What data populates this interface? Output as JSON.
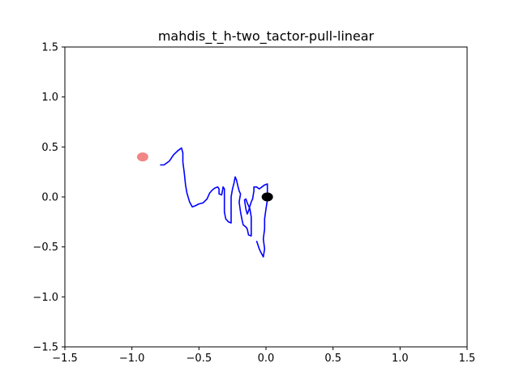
{
  "chart_data": {
    "type": "line",
    "title": "mahdis_t_h-two_tactor-pull-linear",
    "xlabel": "",
    "ylabel": "",
    "xlim": [
      -1.5,
      1.5
    ],
    "ylim": [
      -1.5,
      1.5
    ],
    "grid": false,
    "xticks": [
      {
        "value": -1.5,
        "label": "−1.5"
      },
      {
        "value": -1.0,
        "label": "−1.0"
      },
      {
        "value": -0.5,
        "label": "−0.5"
      },
      {
        "value": 0.0,
        "label": "0.0"
      },
      {
        "value": 0.5,
        "label": "0.5"
      },
      {
        "value": 1.0,
        "label": "1.0"
      },
      {
        "value": 1.5,
        "label": "1.5"
      }
    ],
    "yticks": [
      {
        "value": -1.5,
        "label": "−1.5"
      },
      {
        "value": -1.0,
        "label": "−1.0"
      },
      {
        "value": -0.5,
        "label": "−0.5"
      },
      {
        "value": 0.0,
        "label": "0.0"
      },
      {
        "value": 0.5,
        "label": "0.5"
      },
      {
        "value": 1.0,
        "label": "1.0"
      },
      {
        "value": 1.5,
        "label": "1.5"
      }
    ],
    "series": [
      {
        "color": "#0000ff",
        "points": [
          [
            -0.79,
            0.32
          ],
          [
            -0.76,
            0.32
          ],
          [
            -0.72,
            0.36
          ],
          [
            -0.69,
            0.42
          ],
          [
            -0.66,
            0.46
          ],
          [
            -0.64,
            0.48
          ],
          [
            -0.63,
            0.49
          ],
          [
            -0.62,
            0.44
          ],
          [
            -0.62,
            0.35
          ],
          [
            -0.61,
            0.25
          ],
          [
            -0.6,
            0.12
          ],
          [
            -0.59,
            0.04
          ],
          [
            -0.57,
            -0.05
          ],
          [
            -0.55,
            -0.1
          ],
          [
            -0.53,
            -0.09
          ],
          [
            -0.5,
            -0.07
          ],
          [
            -0.47,
            -0.06
          ],
          [
            -0.44,
            -0.02
          ],
          [
            -0.42,
            0.04
          ],
          [
            -0.4,
            0.07
          ],
          [
            -0.38,
            0.09
          ],
          [
            -0.36,
            0.1
          ],
          [
            -0.35,
            0.08
          ],
          [
            -0.35,
            0.03
          ],
          [
            -0.33,
            0.02
          ],
          [
            -0.32,
            0.1
          ],
          [
            -0.31,
            0.08
          ],
          [
            -0.31,
            -0.02
          ],
          [
            -0.31,
            -0.15
          ],
          [
            -0.3,
            -0.22
          ],
          [
            -0.28,
            -0.25
          ],
          [
            -0.26,
            -0.26
          ],
          [
            -0.26,
            -0.2
          ],
          [
            -0.26,
            0.0
          ],
          [
            -0.25,
            0.08
          ],
          [
            -0.24,
            0.13
          ],
          [
            -0.23,
            0.2
          ],
          [
            -0.22,
            0.17
          ],
          [
            -0.21,
            0.11
          ],
          [
            -0.2,
            0.06
          ],
          [
            -0.19,
            0.03
          ],
          [
            -0.2,
            -0.05
          ],
          [
            -0.19,
            -0.15
          ],
          [
            -0.18,
            -0.22
          ],
          [
            -0.17,
            -0.28
          ],
          [
            -0.15,
            -0.3
          ],
          [
            -0.14,
            -0.32
          ],
          [
            -0.13,
            -0.38
          ],
          [
            -0.11,
            -0.39
          ],
          [
            -0.11,
            -0.3
          ],
          [
            -0.11,
            -0.2
          ],
          [
            -0.12,
            -0.12
          ],
          [
            -0.14,
            -0.06
          ],
          [
            -0.15,
            -0.02
          ],
          [
            -0.16,
            -0.03
          ],
          [
            -0.15,
            -0.12
          ],
          [
            -0.14,
            -0.17
          ],
          [
            -0.13,
            -0.14
          ],
          [
            -0.12,
            -0.09
          ],
          [
            -0.11,
            -0.05
          ],
          [
            -0.1,
            -0.02
          ],
          [
            -0.09,
            0.06
          ],
          [
            -0.09,
            0.1
          ],
          [
            -0.07,
            0.1
          ],
          [
            -0.05,
            0.08
          ],
          [
            -0.03,
            0.1
          ],
          [
            -0.01,
            0.12
          ],
          [
            0.01,
            0.13
          ],
          [
            0.01,
            0.06
          ],
          [
            0.01,
            -0.03
          ],
          [
            0.0,
            -0.12
          ],
          [
            -0.01,
            -0.22
          ],
          [
            -0.01,
            -0.32
          ],
          [
            -0.02,
            -0.42
          ],
          [
            -0.01,
            -0.52
          ],
          [
            -0.02,
            -0.6
          ],
          [
            -0.04,
            -0.55
          ],
          [
            -0.05,
            -0.52
          ],
          [
            -0.06,
            -0.48
          ],
          [
            -0.07,
            -0.44
          ]
        ]
      }
    ],
    "markers": [
      {
        "x": -0.92,
        "y": 0.4,
        "color": "#f07070",
        "opacity": 0.85
      },
      {
        "x": 0.01,
        "y": 0.0,
        "color": "#000000",
        "opacity": 1.0
      }
    ]
  }
}
